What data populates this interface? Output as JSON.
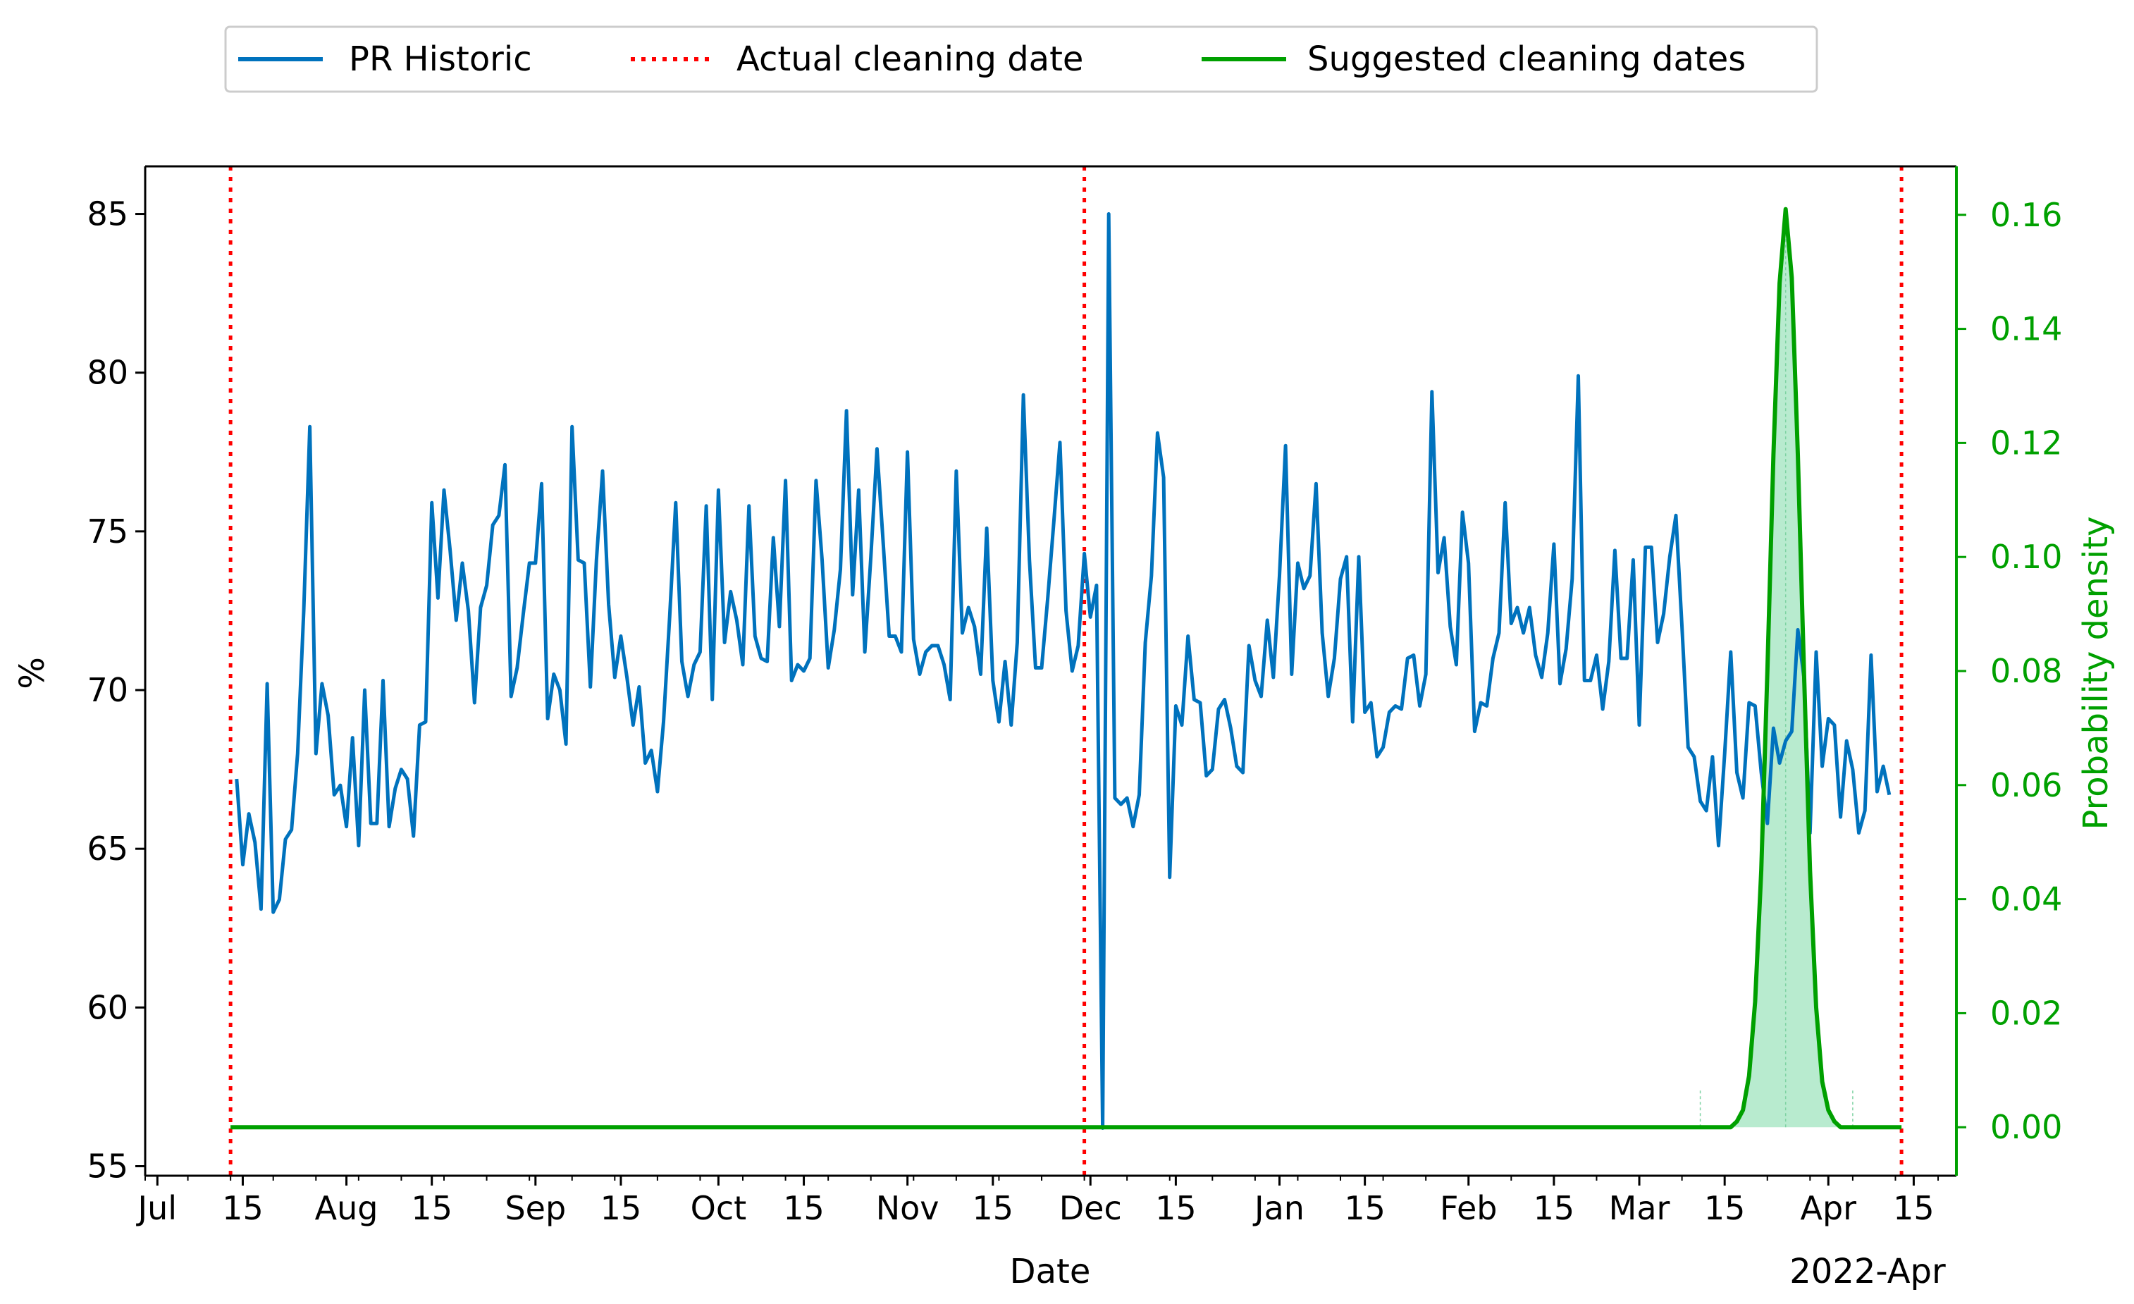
{
  "chart_data": {
    "type": "line",
    "xlabel": "Date",
    "ylabel": "%",
    "y2label": "Probability density",
    "ylim": [
      54.7,
      86.5
    ],
    "y2lim": [
      -0.0085,
      0.1685
    ],
    "xlim": [
      "2021-06-29",
      "2022-04-22"
    ],
    "year_label": "2022-Apr",
    "yticks": [
      55,
      60,
      65,
      70,
      75,
      80,
      85
    ],
    "y2ticks": [
      0.0,
      0.02,
      0.04,
      0.06,
      0.08,
      0.1,
      0.12,
      0.14,
      0.16
    ],
    "y2tick_labels": [
      "0.00",
      "0.02",
      "0.04",
      "0.06",
      "0.08",
      "0.10",
      "0.12",
      "0.14",
      "0.16"
    ],
    "xticks": [
      {
        "date": "2021-07-01",
        "label": "Jul"
      },
      {
        "date": "2021-07-15",
        "label": "15"
      },
      {
        "date": "2021-08-01",
        "label": "Aug"
      },
      {
        "date": "2021-08-15",
        "label": "15"
      },
      {
        "date": "2021-09-01",
        "label": "Sep"
      },
      {
        "date": "2021-09-15",
        "label": "15"
      },
      {
        "date": "2021-10-01",
        "label": "Oct"
      },
      {
        "date": "2021-10-15",
        "label": "15"
      },
      {
        "date": "2021-11-01",
        "label": "Nov"
      },
      {
        "date": "2021-11-15",
        "label": "15"
      },
      {
        "date": "2021-12-01",
        "label": "Dec"
      },
      {
        "date": "2021-12-15",
        "label": "15"
      },
      {
        "date": "2022-01-01",
        "label": "Jan"
      },
      {
        "date": "2022-01-15",
        "label": "15"
      },
      {
        "date": "2022-02-01",
        "label": "Feb"
      },
      {
        "date": "2022-02-15",
        "label": "15"
      },
      {
        "date": "2022-03-01",
        "label": "Mar"
      },
      {
        "date": "2022-03-15",
        "label": "15"
      },
      {
        "date": "2022-04-01",
        "label": "Apr"
      },
      {
        "date": "2022-04-15",
        "label": "15"
      }
    ],
    "legend": {
      "placement": "top-center",
      "entries": [
        "PR Historic",
        "Actual cleaning date",
        "Suggested cleaning dates"
      ]
    },
    "colors": {
      "pr": "#0072BD",
      "cleaning": "#FF0000",
      "suggested": "#00A000",
      "fill": "#B8EBCF"
    },
    "pr_start_date": "2021-07-14",
    "pr_values": [
      67.2,
      64.5,
      66.1,
      65.2,
      63.1,
      70.2,
      63.0,
      63.4,
      65.3,
      65.6,
      68.0,
      72.5,
      78.3,
      68.0,
      70.2,
      69.2,
      66.7,
      67.0,
      65.7,
      68.5,
      65.1,
      70.0,
      65.8,
      65.8,
      70.3,
      65.7,
      66.9,
      67.5,
      67.2,
      65.4,
      68.9,
      69.0,
      75.9,
      72.9,
      76.3,
      74.4,
      72.2,
      74.0,
      72.5,
      69.6,
      72.6,
      73.3,
      75.2,
      75.5,
      77.1,
      69.8,
      70.7,
      72.4,
      74.0,
      74.0,
      76.5,
      69.1,
      70.5,
      70.0,
      68.3,
      78.3,
      74.1,
      74.0,
      70.1,
      74.1,
      76.9,
      72.7,
      70.4,
      71.7,
      70.4,
      68.9,
      70.1,
      67.7,
      68.1,
      66.8,
      69.0,
      72.3,
      75.9,
      70.9,
      69.8,
      70.8,
      71.2,
      75.8,
      69.7,
      76.3,
      71.5,
      73.1,
      72.2,
      70.8,
      75.8,
      71.7,
      71.0,
      70.9,
      74.8,
      72.0,
      76.6,
      70.3,
      70.8,
      70.6,
      71.0,
      76.6,
      74.1,
      70.7,
      71.9,
      73.8,
      78.8,
      73.0,
      76.3,
      71.2,
      74.2,
      77.6,
      74.7,
      71.7,
      71.7,
      71.2,
      77.5,
      71.6,
      70.5,
      71.2,
      71.4,
      71.4,
      70.8,
      69.7,
      76.9,
      71.8,
      72.6,
      72.0,
      70.5,
      75.1,
      70.3,
      69.0,
      70.9,
      68.9,
      71.5,
      79.3,
      74.1,
      70.7,
      70.7,
      72.9,
      75.3,
      77.8,
      72.5,
      70.6,
      71.4,
      74.3,
      72.3,
      73.3,
      56.2,
      85.0,
      66.6,
      66.4,
      66.6,
      65.7,
      66.7,
      71.5,
      73.6,
      78.1,
      76.7,
      64.1,
      69.5,
      68.9,
      71.7,
      69.7,
      69.6,
      67.3,
      67.5,
      69.4,
      69.7,
      68.8,
      67.6,
      67.4,
      71.4,
      70.3,
      69.8,
      72.2,
      70.4,
      73.6,
      77.7,
      70.5,
      74.0,
      73.2,
      73.6,
      76.5,
      71.8,
      69.8,
      71.0,
      73.5,
      74.2,
      69.0,
      74.2,
      69.3,
      69.6,
      67.9,
      68.2,
      69.3,
      69.5,
      69.4,
      71.0,
      71.1,
      69.5,
      70.5,
      79.4,
      73.7,
      74.8,
      72.0,
      70.8,
      75.6,
      74.0,
      68.7,
      69.6,
      69.5,
      71.0,
      71.8,
      75.9,
      72.1,
      72.6,
      71.8,
      72.6,
      71.1,
      70.4,
      71.8,
      74.6,
      70.2,
      71.3,
      73.5,
      79.9,
      70.3,
      70.3,
      71.1,
      69.4,
      70.9,
      74.4,
      71.0,
      71.0,
      74.1,
      68.9,
      74.5,
      74.5,
      71.5,
      72.4,
      74.2,
      75.5,
      72.0,
      68.2,
      67.9,
      66.5,
      66.2,
      67.9,
      65.1,
      68.0,
      71.2,
      67.4,
      66.6,
      69.6,
      69.5,
      67.4,
      65.8,
      68.8,
      67.7,
      68.4,
      68.7,
      71.9,
      70.4,
      65.5,
      71.2,
      67.6,
      69.1,
      68.9,
      66.0,
      68.4,
      67.5,
      65.5,
      66.2,
      71.1,
      66.8,
      67.6,
      66.7
    ],
    "cleaning_dates": [
      "2021-07-13",
      "2021-11-30",
      "2022-04-13"
    ],
    "suggested_start": "2021-07-13",
    "suggested_end": "2022-04-13",
    "density": [
      {
        "date": "2022-03-16",
        "value": 0.0
      },
      {
        "date": "2022-03-17",
        "value": 0.001
      },
      {
        "date": "2022-03-18",
        "value": 0.003
      },
      {
        "date": "2022-03-19",
        "value": 0.009
      },
      {
        "date": "2022-03-20",
        "value": 0.022
      },
      {
        "date": "2022-03-21",
        "value": 0.045
      },
      {
        "date": "2022-03-22",
        "value": 0.08
      },
      {
        "date": "2022-03-23",
        "value": 0.118
      },
      {
        "date": "2022-03-24",
        "value": 0.148
      },
      {
        "date": "2022-03-25",
        "value": 0.161
      },
      {
        "date": "2022-03-26",
        "value": 0.149
      },
      {
        "date": "2022-03-27",
        "value": 0.118
      },
      {
        "date": "2022-03-28",
        "value": 0.08
      },
      {
        "date": "2022-03-29",
        "value": 0.045
      },
      {
        "date": "2022-03-30",
        "value": 0.021
      },
      {
        "date": "2022-03-31",
        "value": 0.008
      },
      {
        "date": "2022-04-01",
        "value": 0.003
      },
      {
        "date": "2022-04-02",
        "value": 0.001
      },
      {
        "date": "2022-04-03",
        "value": 0.0
      }
    ],
    "shaded_range": [
      "2022-03-11",
      "2022-04-05"
    ],
    "density_peak_date": "2022-03-25"
  }
}
